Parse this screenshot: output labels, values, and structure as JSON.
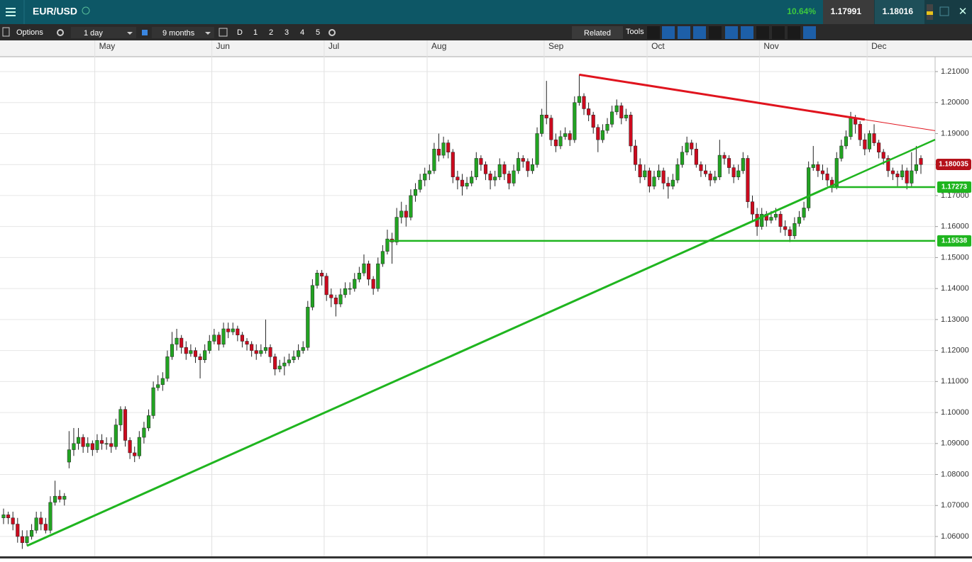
{
  "header": {
    "symbol": "EUR/USD",
    "change": "10.64%",
    "sell": "1.17991",
    "buy": "1.18016"
  },
  "toolbar": {
    "options": "Options",
    "interval": "1 day",
    "range": "9 months",
    "periods": [
      "D",
      "1",
      "2",
      "3",
      "4",
      "5"
    ],
    "related": "Related",
    "tools": "Tools"
  },
  "chart_data": {
    "type": "candlestick",
    "categories": [
      null,
      null,
      null,
      null,
      null,
      null,
      null,
      null,
      null,
      null,
      null,
      null,
      null,
      null,
      null,
      null,
      null,
      null,
      null,
      null,
      "May",
      null,
      null,
      null,
      null,
      null,
      null,
      null,
      null,
      null,
      null,
      null,
      null,
      null,
      null,
      null,
      null,
      null,
      null,
      null,
      null,
      null,
      null,
      null,
      null,
      "Jun",
      null,
      null,
      null,
      null,
      null,
      null,
      null,
      null,
      null,
      null,
      null,
      null,
      null,
      null,
      null,
      null,
      null,
      null,
      null,
      null,
      null,
      null,
      null,
      "Jul",
      null,
      null,
      null,
      null,
      null,
      null,
      null,
      null,
      null,
      null,
      null,
      null,
      null,
      null,
      null,
      null,
      null,
      null,
      null,
      null,
      null,
      "Aug",
      null,
      null,
      null,
      null,
      null,
      null,
      null,
      null,
      null,
      null,
      null,
      null,
      null,
      null,
      null,
      null,
      null,
      null,
      null,
      null,
      null,
      null,
      null,
      null,
      "Sep",
      null,
      null,
      null,
      null,
      null,
      null,
      null,
      null,
      null,
      null,
      null,
      null,
      null,
      null,
      null,
      null,
      null,
      null,
      null,
      null,
      null,
      "Oct",
      null,
      null,
      null,
      null,
      null,
      null,
      null,
      null,
      null,
      null,
      null,
      null,
      null,
      null,
      null,
      null,
      null,
      null,
      null,
      null,
      null,
      null,
      null,
      "Nov",
      null,
      null,
      null,
      null,
      null,
      null,
      null,
      null,
      null,
      null,
      null,
      null,
      null,
      null,
      null,
      null,
      null,
      null,
      null,
      null,
      null,
      null,
      "Dec",
      null,
      null,
      null,
      null,
      null,
      null,
      null,
      null,
      null,
      null,
      null
    ],
    "candles": [
      [
        1.066,
        1.069,
        1.064,
        1.067
      ],
      [
        1.067,
        1.068,
        1.064,
        1.066
      ],
      [
        1.066,
        1.068,
        1.062,
        1.064
      ],
      [
        1.064,
        1.066,
        1.058,
        1.06
      ],
      [
        1.06,
        1.062,
        1.056,
        1.058
      ],
      [
        1.058,
        1.062,
        1.057,
        1.06
      ],
      [
        1.06,
        1.064,
        1.059,
        1.062
      ],
      [
        1.062,
        1.068,
        1.061,
        1.066
      ],
      [
        1.066,
        1.068,
        1.062,
        1.064
      ],
      [
        1.064,
        1.066,
        1.061,
        1.062
      ],
      [
        1.062,
        1.073,
        1.061,
        1.071
      ],
      [
        1.071,
        1.078,
        1.07,
        1.073
      ],
      [
        1.073,
        1.075,
        1.071,
        1.072
      ],
      [
        1.072,
        1.074,
        1.07,
        1.073
      ],
      [
        1.084,
        1.094,
        1.082,
        1.088
      ],
      [
        1.088,
        1.095,
        1.086,
        1.09
      ],
      [
        1.09,
        1.095,
        1.088,
        1.092
      ],
      [
        1.092,
        1.093,
        1.087,
        1.089
      ],
      [
        1.089,
        1.092,
        1.087,
        1.09
      ],
      [
        1.09,
        1.091,
        1.086,
        1.088
      ],
      [
        1.088,
        1.093,
        1.087,
        1.091
      ],
      [
        1.091,
        1.093,
        1.088,
        1.09
      ],
      [
        1.09,
        1.092,
        1.088,
        1.09
      ],
      [
        1.09,
        1.092,
        1.087,
        1.089
      ],
      [
        1.089,
        1.098,
        1.088,
        1.096
      ],
      [
        1.096,
        1.102,
        1.094,
        1.101
      ],
      [
        1.101,
        1.102,
        1.089,
        1.091
      ],
      [
        1.091,
        1.092,
        1.085,
        1.087
      ],
      [
        1.087,
        1.089,
        1.084,
        1.086
      ],
      [
        1.086,
        1.094,
        1.085,
        1.092
      ],
      [
        1.092,
        1.097,
        1.09,
        1.095
      ],
      [
        1.095,
        1.101,
        1.094,
        1.099
      ],
      [
        1.099,
        1.11,
        1.098,
        1.108
      ],
      [
        1.108,
        1.112,
        1.107,
        1.109
      ],
      [
        1.109,
        1.113,
        1.107,
        1.111
      ],
      [
        1.111,
        1.12,
        1.11,
        1.118
      ],
      [
        1.118,
        1.126,
        1.117,
        1.122
      ],
      [
        1.122,
        1.127,
        1.12,
        1.124
      ],
      [
        1.124,
        1.125,
        1.119,
        1.121
      ],
      [
        1.121,
        1.123,
        1.117,
        1.119
      ],
      [
        1.119,
        1.122,
        1.118,
        1.12
      ],
      [
        1.12,
        1.121,
        1.116,
        1.118
      ],
      [
        1.118,
        1.119,
        1.111,
        1.117
      ],
      [
        1.117,
        1.122,
        1.116,
        1.12
      ],
      [
        1.12,
        1.125,
        1.119,
        1.123
      ],
      [
        1.123,
        1.127,
        1.122,
        1.125
      ],
      [
        1.125,
        1.126,
        1.12,
        1.122
      ],
      [
        1.122,
        1.129,
        1.121,
        1.127
      ],
      [
        1.127,
        1.129,
        1.124,
        1.126
      ],
      [
        1.126,
        1.129,
        1.125,
        1.127
      ],
      [
        1.127,
        1.128,
        1.123,
        1.125
      ],
      [
        1.125,
        1.126,
        1.121,
        1.123
      ],
      [
        1.123,
        1.124,
        1.12,
        1.122
      ],
      [
        1.122,
        1.123,
        1.118,
        1.12
      ],
      [
        1.12,
        1.122,
        1.117,
        1.119
      ],
      [
        1.119,
        1.122,
        1.118,
        1.12
      ],
      [
        1.12,
        1.13,
        1.119,
        1.121
      ],
      [
        1.121,
        1.122,
        1.116,
        1.118
      ],
      [
        1.118,
        1.119,
        1.112,
        1.114
      ],
      [
        1.114,
        1.117,
        1.113,
        1.115
      ],
      [
        1.115,
        1.118,
        1.112,
        1.116
      ],
      [
        1.116,
        1.119,
        1.115,
        1.117
      ],
      [
        1.117,
        1.12,
        1.116,
        1.118
      ],
      [
        1.118,
        1.122,
        1.117,
        1.12
      ],
      [
        1.12,
        1.123,
        1.119,
        1.121
      ],
      [
        1.121,
        1.136,
        1.12,
        1.134
      ],
      [
        1.134,
        1.143,
        1.133,
        1.141
      ],
      [
        1.141,
        1.146,
        1.14,
        1.145
      ],
      [
        1.145,
        1.146,
        1.141,
        1.144
      ],
      [
        1.144,
        1.145,
        1.136,
        1.138
      ],
      [
        1.138,
        1.14,
        1.134,
        1.137
      ],
      [
        1.137,
        1.138,
        1.131,
        1.135
      ],
      [
        1.135,
        1.14,
        1.134,
        1.138
      ],
      [
        1.138,
        1.142,
        1.137,
        1.14
      ],
      [
        1.14,
        1.142,
        1.138,
        1.14
      ],
      [
        1.14,
        1.145,
        1.139,
        1.143
      ],
      [
        1.143,
        1.147,
        1.142,
        1.145
      ],
      [
        1.145,
        1.151,
        1.144,
        1.148
      ],
      [
        1.148,
        1.149,
        1.141,
        1.143
      ],
      [
        1.143,
        1.144,
        1.138,
        1.14
      ],
      [
        1.14,
        1.15,
        1.139,
        1.148
      ],
      [
        1.148,
        1.154,
        1.147,
        1.152
      ],
      [
        1.152,
        1.159,
        1.151,
        1.156
      ],
      [
        1.156,
        1.158,
        1.148,
        1.155
      ],
      [
        1.155,
        1.166,
        1.154,
        1.163
      ],
      [
        1.163,
        1.168,
        1.161,
        1.165
      ],
      [
        1.165,
        1.167,
        1.16,
        1.163
      ],
      [
        1.163,
        1.172,
        1.162,
        1.17
      ],
      [
        1.17,
        1.174,
        1.168,
        1.172
      ],
      [
        1.172,
        1.177,
        1.171,
        1.175
      ],
      [
        1.175,
        1.179,
        1.173,
        1.177
      ],
      [
        1.177,
        1.18,
        1.175,
        1.178
      ],
      [
        1.178,
        1.187,
        1.177,
        1.185
      ],
      [
        1.185,
        1.19,
        1.181,
        1.183
      ],
      [
        1.183,
        1.189,
        1.182,
        1.187
      ],
      [
        1.187,
        1.188,
        1.182,
        1.184
      ],
      [
        1.184,
        1.185,
        1.174,
        1.176
      ],
      [
        1.176,
        1.178,
        1.172,
        1.175
      ],
      [
        1.175,
        1.177,
        1.17,
        1.173
      ],
      [
        1.173,
        1.176,
        1.172,
        1.174
      ],
      [
        1.174,
        1.178,
        1.173,
        1.176
      ],
      [
        1.176,
        1.184,
        1.175,
        1.182
      ],
      [
        1.182,
        1.183,
        1.178,
        1.18
      ],
      [
        1.18,
        1.181,
        1.175,
        1.177
      ],
      [
        1.177,
        1.178,
        1.172,
        1.175
      ],
      [
        1.175,
        1.178,
        1.173,
        1.176
      ],
      [
        1.176,
        1.182,
        1.175,
        1.18
      ],
      [
        1.18,
        1.181,
        1.175,
        1.177
      ],
      [
        1.177,
        1.178,
        1.172,
        1.174
      ],
      [
        1.174,
        1.18,
        1.173,
        1.178
      ],
      [
        1.178,
        1.184,
        1.177,
        1.182
      ],
      [
        1.182,
        1.183,
        1.179,
        1.181
      ],
      [
        1.181,
        1.182,
        1.176,
        1.178
      ],
      [
        1.178,
        1.182,
        1.177,
        1.18
      ],
      [
        1.18,
        1.192,
        1.179,
        1.19
      ],
      [
        1.19,
        1.198,
        1.189,
        1.196
      ],
      [
        1.196,
        1.207,
        1.193,
        1.195
      ],
      [
        1.195,
        1.196,
        1.186,
        1.188
      ],
      [
        1.188,
        1.19,
        1.184,
        1.186
      ],
      [
        1.186,
        1.191,
        1.185,
        1.189
      ],
      [
        1.189,
        1.192,
        1.188,
        1.19
      ],
      [
        1.19,
        1.191,
        1.186,
        1.188
      ],
      [
        1.188,
        1.202,
        1.187,
        1.2
      ],
      [
        1.2,
        1.209,
        1.199,
        1.202
      ],
      [
        1.202,
        1.203,
        1.196,
        1.198
      ],
      [
        1.198,
        1.2,
        1.194,
        1.196
      ],
      [
        1.196,
        1.197,
        1.19,
        1.192
      ],
      [
        1.192,
        1.193,
        1.184,
        1.188
      ],
      [
        1.188,
        1.193,
        1.187,
        1.191
      ],
      [
        1.191,
        1.195,
        1.19,
        1.193
      ],
      [
        1.193,
        1.199,
        1.192,
        1.197
      ],
      [
        1.197,
        1.201,
        1.196,
        1.199
      ],
      [
        1.199,
        1.2,
        1.193,
        1.195
      ],
      [
        1.195,
        1.198,
        1.194,
        1.196
      ],
      [
        1.196,
        1.197,
        1.184,
        1.186
      ],
      [
        1.186,
        1.188,
        1.178,
        1.18
      ],
      [
        1.18,
        1.182,
        1.174,
        1.176
      ],
      [
        1.176,
        1.18,
        1.175,
        1.178
      ],
      [
        1.178,
        1.179,
        1.171,
        1.173
      ],
      [
        1.173,
        1.178,
        1.172,
        1.176
      ],
      [
        1.176,
        1.18,
        1.175,
        1.178
      ],
      [
        1.178,
        1.179,
        1.172,
        1.174
      ],
      [
        1.174,
        1.176,
        1.169,
        1.173
      ],
      [
        1.173,
        1.177,
        1.172,
        1.175
      ],
      [
        1.175,
        1.182,
        1.174,
        1.18
      ],
      [
        1.18,
        1.186,
        1.179,
        1.184
      ],
      [
        1.184,
        1.189,
        1.183,
        1.187
      ],
      [
        1.187,
        1.188,
        1.183,
        1.185
      ],
      [
        1.185,
        1.187,
        1.179,
        1.18
      ],
      [
        1.18,
        1.181,
        1.176,
        1.178
      ],
      [
        1.178,
        1.18,
        1.176,
        1.177
      ],
      [
        1.177,
        1.178,
        1.173,
        1.175
      ],
      [
        1.175,
        1.178,
        1.174,
        1.176
      ],
      [
        1.176,
        1.188,
        1.175,
        1.183
      ],
      [
        1.183,
        1.184,
        1.18,
        1.182
      ],
      [
        1.182,
        1.183,
        1.177,
        1.179
      ],
      [
        1.179,
        1.18,
        1.174,
        1.176
      ],
      [
        1.176,
        1.18,
        1.175,
        1.178
      ],
      [
        1.178,
        1.184,
        1.177,
        1.182
      ],
      [
        1.182,
        1.183,
        1.166,
        1.168
      ],
      [
        1.168,
        1.17,
        1.162,
        1.164
      ],
      [
        1.164,
        1.166,
        1.157,
        1.16
      ],
      [
        1.16,
        1.166,
        1.159,
        1.164
      ],
      [
        1.164,
        1.165,
        1.16,
        1.162
      ],
      [
        1.162,
        1.165,
        1.161,
        1.163
      ],
      [
        1.163,
        1.166,
        1.162,
        1.164
      ],
      [
        1.164,
        1.165,
        1.158,
        1.16
      ],
      [
        1.16,
        1.162,
        1.157,
        1.159
      ],
      [
        1.159,
        1.16,
        1.155,
        1.157
      ],
      [
        1.157,
        1.163,
        1.156,
        1.161
      ],
      [
        1.161,
        1.165,
        1.16,
        1.163
      ],
      [
        1.163,
        1.168,
        1.162,
        1.166
      ],
      [
        1.166,
        1.181,
        1.165,
        1.179
      ],
      [
        1.179,
        1.186,
        1.178,
        1.18
      ],
      [
        1.18,
        1.181,
        1.176,
        1.178
      ],
      [
        1.178,
        1.18,
        1.175,
        1.177
      ],
      [
        1.177,
        1.179,
        1.173,
        1.175
      ],
      [
        1.175,
        1.176,
        1.171,
        1.173
      ],
      [
        1.173,
        1.184,
        1.172,
        1.182
      ],
      [
        1.182,
        1.188,
        1.181,
        1.186
      ],
      [
        1.186,
        1.191,
        1.185,
        1.189
      ],
      [
        1.189,
        1.197,
        1.188,
        1.195
      ],
      [
        1.195,
        1.196,
        1.19,
        1.193
      ],
      [
        1.193,
        1.194,
        1.186,
        1.188
      ],
      [
        1.188,
        1.19,
        1.183,
        1.185
      ],
      [
        1.185,
        1.191,
        1.184,
        1.19
      ],
      [
        1.19,
        1.193,
        1.186,
        1.187
      ],
      [
        1.187,
        1.188,
        1.182,
        1.184
      ],
      [
        1.184,
        1.185,
        1.18,
        1.182
      ],
      [
        1.182,
        1.183,
        1.176,
        1.178
      ],
      [
        1.178,
        1.179,
        1.175,
        1.177
      ],
      [
        1.177,
        1.178,
        1.173,
        1.176
      ],
      [
        1.176,
        1.18,
        1.175,
        1.178
      ],
      [
        1.178,
        1.179,
        1.172,
        1.174
      ],
      [
        1.174,
        1.184,
        1.173,
        1.178
      ],
      [
        1.178,
        1.186,
        1.177,
        1.18
      ],
      [
        1.182,
        1.183,
        1.177,
        1.18
      ]
    ],
    "up_color": "#22a322",
    "down_color": "#cc0a1e",
    "ylim": [
      1.0536,
      1.2148
    ],
    "yticks": [
      {
        "value": 1.06,
        "label": "1.06000"
      },
      {
        "value": 1.07,
        "label": "1.07000"
      },
      {
        "value": 1.08,
        "label": "1.08000"
      },
      {
        "value": 1.09,
        "label": "1.09000"
      },
      {
        "value": 1.1,
        "label": "1.10000"
      },
      {
        "value": 1.11,
        "label": "1.11000"
      },
      {
        "value": 1.12,
        "label": "1.12000"
      },
      {
        "value": 1.13,
        "label": "1.13000"
      },
      {
        "value": 1.14,
        "label": "1.14000"
      },
      {
        "value": 1.15,
        "label": "1.15000"
      },
      {
        "value": 1.16,
        "label": "1.16000"
      },
      {
        "value": 1.17,
        "label": "1.17000"
      },
      {
        "value": 1.18,
        "label": "1.18000"
      },
      {
        "value": 1.19,
        "label": "1.19000"
      },
      {
        "value": 1.2,
        "label": "1.20000"
      },
      {
        "value": 1.21,
        "label": "1.21000"
      }
    ],
    "grid": true,
    "trendlines": [
      {
        "color": "#e0141e",
        "points": [
          [
            123,
            1.209
          ],
          [
            184,
            1.1945
          ]
        ]
      },
      {
        "color": "#1fb51f",
        "points": [
          [
            5,
            1.057
          ],
          [
            176,
            1.1725
          ]
        ]
      }
    ],
    "levels": [
      {
        "value": 1.15538,
        "label": "1.15538",
        "start": 82,
        "color": "#1fb51f"
      },
      {
        "value": 1.17273,
        "label": "1.17273",
        "start": 176,
        "color": "#1fb51f"
      }
    ],
    "last_price": {
      "value": 1.180035,
      "label": "1.180035",
      "color": "#b5121b"
    }
  }
}
